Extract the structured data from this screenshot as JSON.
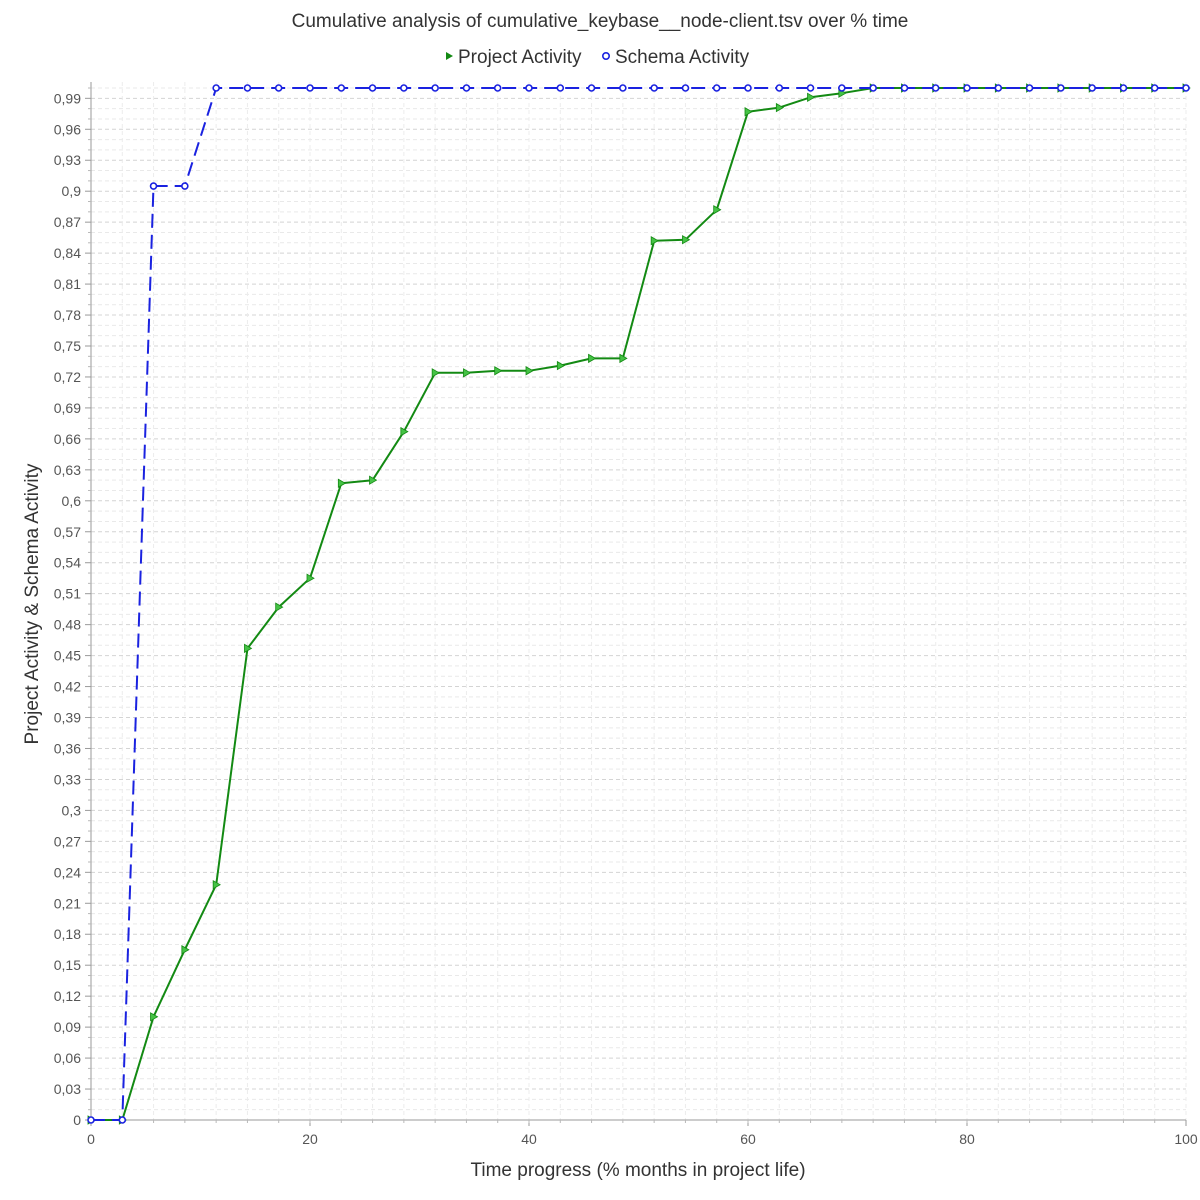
{
  "chart_data": {
    "type": "line",
    "title": "Cumulative analysis of cumulative_keybase__node-client.tsv over % time",
    "xlabel": "Time progress (% months in project life)",
    "ylabel": "Project Activity & Schema Activity",
    "xlim": [
      0,
      100
    ],
    "ylim": [
      0,
      1
    ],
    "x_ticks": [
      "0",
      "20",
      "40",
      "60",
      "80",
      "100"
    ],
    "y_ticks": [
      "0",
      "0,03",
      "0,06",
      "0,09",
      "0,12",
      "0,15",
      "0,18",
      "0,21",
      "0,24",
      "0,27",
      "0,3",
      "0,33",
      "0,36",
      "0,39",
      "0,42",
      "0,45",
      "0,48",
      "0,51",
      "0,54",
      "0,57",
      "0,6",
      "0,63",
      "0,66",
      "0,69",
      "0,72",
      "0,75",
      "0,78",
      "0,81",
      "0,84",
      "0,87",
      "0,9",
      "0,93",
      "0,96",
      "0,99"
    ],
    "grid": true,
    "legend_position": "top",
    "series": [
      {
        "name": "Project Activity",
        "color": "#138a13",
        "marker": "triangle-right",
        "line_style": "solid",
        "x": [
          0,
          2.86,
          5.71,
          8.57,
          11.43,
          14.29,
          17.14,
          20,
          22.86,
          25.71,
          28.57,
          31.43,
          34.29,
          37.14,
          40,
          42.86,
          45.71,
          48.57,
          51.43,
          54.29,
          57.14,
          60,
          62.86,
          65.71,
          68.57,
          71.43,
          74.29,
          77.14,
          80,
          82.86,
          85.71,
          88.57,
          91.43,
          94.29,
          97.14,
          100
        ],
        "values": [
          0,
          0,
          0.1,
          0.165,
          0.228,
          0.457,
          0.497,
          0.525,
          0.617,
          0.62,
          0.667,
          0.724,
          0.724,
          0.726,
          0.726,
          0.731,
          0.738,
          0.738,
          0.852,
          0.853,
          0.882,
          0.977,
          0.981,
          0.991,
          0.995,
          1,
          1,
          1,
          1,
          1,
          1,
          1,
          1,
          1,
          1,
          1
        ]
      },
      {
        "name": "Schema Activity",
        "color": "#1a22e0",
        "marker": "circle",
        "line_style": "dashed",
        "x": [
          0,
          2.86,
          5.71,
          8.57,
          11.43,
          14.29,
          17.14,
          20,
          22.86,
          25.71,
          28.57,
          31.43,
          34.29,
          37.14,
          40,
          42.86,
          45.71,
          48.57,
          51.43,
          54.29,
          57.14,
          60,
          62.86,
          65.71,
          68.57,
          71.43,
          74.29,
          77.14,
          80,
          82.86,
          85.71,
          88.57,
          91.43,
          94.29,
          97.14,
          100
        ],
        "values": [
          0,
          0,
          0.905,
          0.905,
          1,
          1,
          1,
          1,
          1,
          1,
          1,
          1,
          1,
          1,
          1,
          1,
          1,
          1,
          1,
          1,
          1,
          1,
          1,
          1,
          1,
          1,
          1,
          1,
          1,
          1,
          1,
          1,
          1,
          1,
          1,
          1
        ]
      }
    ]
  }
}
